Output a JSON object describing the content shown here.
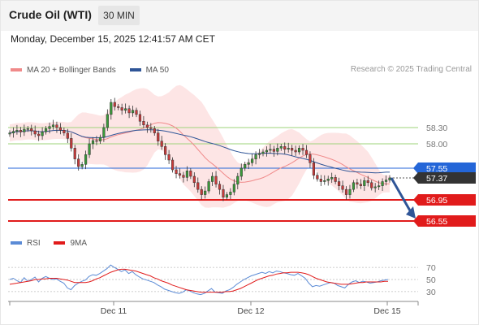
{
  "header": {
    "title": "Crude Oil (WTI)",
    "interval": "30 MIN",
    "datetime": "Monday, December 15, 2025 12:41:57 AM CET"
  },
  "legend": {
    "ma20_bb": "MA 20 + Bollinger Bands",
    "ma50": "MA 50",
    "credit": "Research © 2025 Trading Central",
    "rsi": "RSI",
    "rsi_ma": "9MA"
  },
  "colors": {
    "bollinger_fill": "#fde0e0",
    "ma20": "#f08a8a",
    "ma50": "#2f5597",
    "candle_up": "#3a9a3a",
    "candle_down": "#c83a3a",
    "resistance": "#9ed37a",
    "support": "#e11b1b",
    "pivot": "#2466d8",
    "current": "#333333",
    "forecast_arrow": "#2f5597",
    "rsi_line": "#5b8bd6",
    "rsi_ma_line": "#e11b1b"
  },
  "chart_data": [
    {
      "type": "candlestick",
      "price_levels": [
        {
          "label": "58.30",
          "value": 58.3,
          "kind": "resistance"
        },
        {
          "label": "58.00",
          "value": 58.0,
          "kind": "resistance"
        },
        {
          "label": "57.55",
          "value": 57.55,
          "kind": "pivot"
        },
        {
          "label": "57.37",
          "value": 57.37,
          "kind": "current"
        },
        {
          "label": "56.95",
          "value": 56.95,
          "kind": "support"
        },
        {
          "label": "56.55",
          "value": 56.55,
          "kind": "support"
        }
      ],
      "x_ticks": [
        "Dec 11",
        "Dec 12",
        "Dec 15"
      ],
      "y_range": [
        56.5,
        59.3
      ],
      "closes": [
        58.2,
        58.23,
        58.25,
        58.22,
        58.27,
        58.28,
        58.24,
        58.18,
        58.15,
        58.22,
        58.28,
        58.32,
        58.35,
        58.3,
        58.25,
        58.2,
        58.1,
        57.92,
        57.72,
        57.58,
        57.62,
        57.8,
        58.0,
        58.06,
        58.05,
        58.12,
        58.3,
        58.55,
        58.78,
        58.7,
        58.68,
        58.63,
        58.66,
        58.58,
        58.63,
        58.55,
        58.42,
        58.35,
        58.3,
        58.28,
        58.2,
        58.05,
        57.95,
        57.8,
        57.7,
        57.52,
        57.45,
        57.42,
        57.38,
        57.5,
        57.4,
        57.28,
        57.15,
        57.05,
        57.12,
        57.3,
        57.4,
        57.25,
        57.15,
        57.0,
        57.05,
        57.1,
        57.25,
        57.4,
        57.55,
        57.62,
        57.65,
        57.72,
        57.8,
        57.82,
        57.85,
        57.88,
        57.9,
        57.86,
        57.92,
        57.95,
        57.9,
        57.92,
        57.88,
        57.85,
        57.92,
        57.88,
        57.8,
        57.65,
        57.42,
        57.35,
        57.3,
        57.32,
        57.35,
        57.38,
        57.3,
        57.22,
        57.15,
        57.05,
        57.15,
        57.28,
        57.25,
        57.22,
        57.32,
        57.28,
        57.18,
        57.2,
        57.22,
        57.3,
        57.33,
        57.37
      ]
    },
    {
      "type": "line",
      "y_ticks": [
        "70",
        "50",
        "30"
      ],
      "ylim": [
        15,
        85
      ],
      "series": [
        {
          "name": "RSI",
          "values": [
            50,
            52,
            48,
            45,
            53,
            47,
            50,
            54,
            46,
            52,
            55,
            52,
            50,
            51,
            47,
            44,
            36,
            33,
            40,
            44,
            47,
            49,
            55,
            58,
            57,
            60,
            64,
            68,
            74,
            70,
            67,
            63,
            66,
            60,
            63,
            58,
            54,
            51,
            49,
            47,
            45,
            41,
            38,
            34,
            32,
            30,
            28,
            27,
            29,
            33,
            31,
            28,
            26,
            25,
            27,
            31,
            35,
            29,
            28,
            27,
            31,
            33,
            37,
            42,
            46,
            50,
            53,
            56,
            58,
            60,
            62,
            60,
            63,
            61,
            64,
            63,
            61,
            60,
            58,
            57,
            60,
            56,
            52,
            44,
            38,
            40,
            39,
            41,
            43,
            45,
            44,
            40,
            38,
            36,
            42,
            46,
            48,
            45,
            47,
            46,
            44,
            45,
            46,
            48,
            49,
            50
          ]
        },
        {
          "name": "9MA",
          "values": [
            42,
            43,
            44,
            45,
            46,
            47,
            48,
            50,
            50,
            51,
            51,
            52,
            52,
            52,
            51,
            50,
            49,
            47,
            45,
            45,
            45,
            45,
            46,
            48,
            51,
            53,
            56,
            59,
            62,
            64,
            66,
            67,
            67,
            66,
            65,
            64,
            62,
            60,
            58,
            56,
            53,
            51,
            48,
            46,
            44,
            41,
            39,
            37,
            35,
            33,
            32,
            31,
            30,
            29,
            29,
            29,
            29,
            29,
            29,
            29,
            30,
            30,
            31,
            33,
            35,
            38,
            41,
            44,
            47,
            50,
            52,
            54,
            56,
            57,
            59,
            60,
            61,
            61,
            62,
            62,
            62,
            61,
            60,
            58,
            55,
            52,
            50,
            48,
            46,
            45,
            44,
            43,
            42,
            42,
            42,
            43,
            44,
            45,
            45,
            46,
            46,
            46,
            46,
            46,
            47,
            47
          ]
        }
      ]
    }
  ]
}
